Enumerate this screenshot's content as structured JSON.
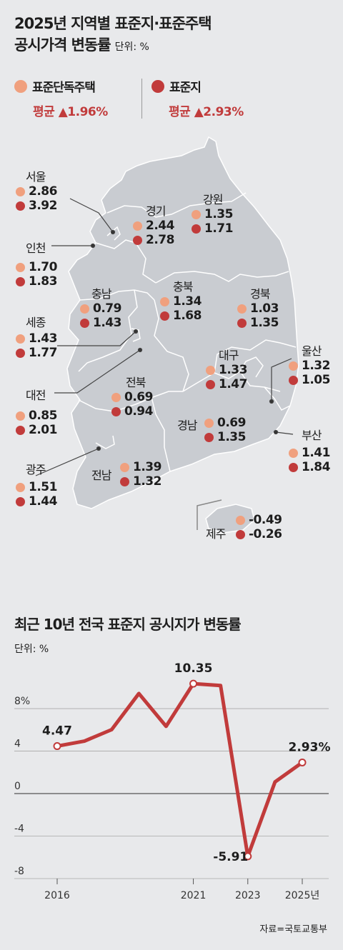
{
  "header": {
    "title_line1": "2025년 지역별 표준지·표준주택",
    "title_line2": "공시가격 변동률",
    "unit": "단위: %"
  },
  "legend": {
    "house": {
      "label": "표준단독주택",
      "avg_label": "평균",
      "avg_value": "▲1.96%",
      "color": "#f0a07e"
    },
    "land": {
      "label": "표준지",
      "avg_label": "평균",
      "avg_value": "▲2.93%",
      "color": "#c13b3b"
    }
  },
  "regions": [
    {
      "name": "서울",
      "house": "2.86",
      "land": "3.92"
    },
    {
      "name": "인천",
      "house": "1.70",
      "land": "1.83"
    },
    {
      "name": "세종",
      "house": "1.43",
      "land": "1.77"
    },
    {
      "name": "대전",
      "house": "0.85",
      "land": "2.01"
    },
    {
      "name": "광주",
      "house": "1.51",
      "land": "1.44"
    },
    {
      "name": "경기",
      "house": "2.44",
      "land": "2.78"
    },
    {
      "name": "강원",
      "house": "1.35",
      "land": "1.71"
    },
    {
      "name": "충남",
      "house": "0.79",
      "land": "1.43"
    },
    {
      "name": "충북",
      "house": "1.34",
      "land": "1.68"
    },
    {
      "name": "경북",
      "house": "1.03",
      "land": "1.35"
    },
    {
      "name": "대구",
      "house": "1.33",
      "land": "1.47"
    },
    {
      "name": "울산",
      "house": "1.32",
      "land": "1.05"
    },
    {
      "name": "전북",
      "house": "0.69",
      "land": "0.94"
    },
    {
      "name": "경남",
      "house": "0.69",
      "land": "1.35"
    },
    {
      "name": "부산",
      "house": "1.41",
      "land": "1.84"
    },
    {
      "name": "전남",
      "house": "1.39",
      "land": "1.32"
    },
    {
      "name": "제주",
      "house": "-0.49",
      "land": "-0.26"
    }
  ],
  "line_section": {
    "title": "최근 10년 전국 표준지 공시지가 변동률",
    "unit": "단위: %"
  },
  "chart_data": {
    "type": "line",
    "title": "최근 10년 전국 표준지 공시지가 변동률",
    "x": [
      2016,
      2017,
      2018,
      2019,
      2020,
      2021,
      2022,
      2023,
      2024,
      2025
    ],
    "series": [
      {
        "values": [
          4.47,
          4.94,
          6.02,
          9.42,
          6.33,
          10.35,
          10.17,
          -5.91,
          1.1,
          2.93
        ]
      }
    ],
    "x_tick_labels": [
      {
        "x": 2016,
        "label": "2016"
      },
      {
        "x": 2021,
        "label": "2021"
      },
      {
        "x": 2023,
        "label": "2023"
      },
      {
        "x": 2025,
        "label": "2025년"
      }
    ],
    "y_ticks": [
      {
        "value": 8,
        "label": "8%"
      },
      {
        "value": 4,
        "label": "4"
      },
      {
        "value": 0,
        "label": "0"
      },
      {
        "value": -4,
        "label": "-4"
      },
      {
        "value": -8,
        "label": "-8"
      }
    ],
    "ylim": [
      -8,
      11.5
    ],
    "data_labels": [
      {
        "x": 2016,
        "label": "4.47"
      },
      {
        "x": 2021,
        "label": "10.35"
      },
      {
        "x": 2023,
        "label": "-5.91"
      },
      {
        "x": 2025,
        "label": "2.93%"
      }
    ],
    "line_color": "#c13b3b"
  },
  "source": "자료=국토교통부"
}
